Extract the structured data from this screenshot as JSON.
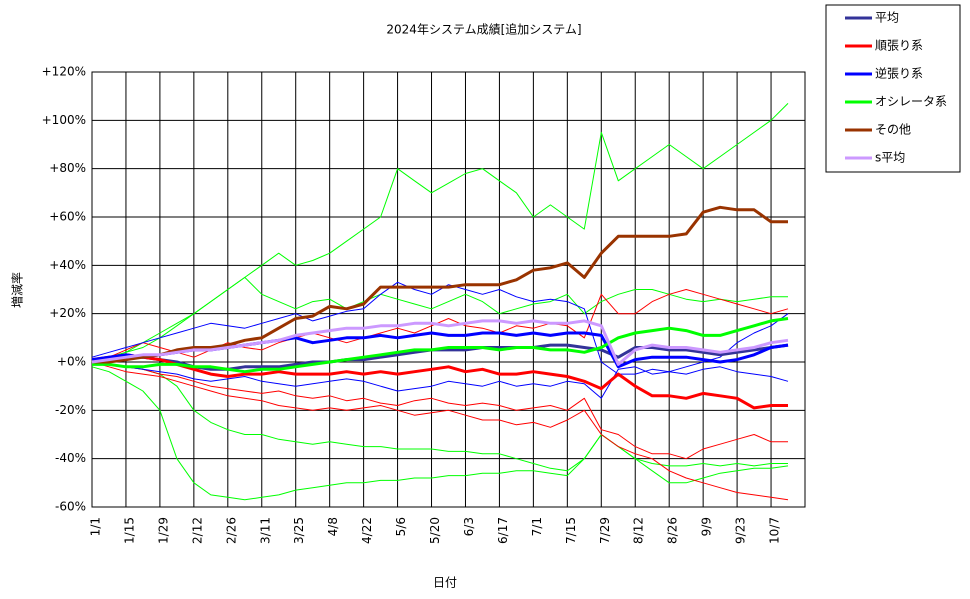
{
  "chart_data": {
    "type": "line",
    "title": "2024年システム成績[追加システム]",
    "x_label": "日付",
    "y_label": "増減率",
    "categories": [
      "1/1",
      null,
      "1/15",
      null,
      "1/29",
      null,
      "2/12",
      null,
      "2/26",
      null,
      "3/11",
      null,
      "3/25",
      null,
      "4/8",
      null,
      "4/22",
      null,
      "5/6",
      null,
      "5/20",
      null,
      "6/3",
      null,
      "6/17",
      null,
      "7/1",
      null,
      "7/15",
      null,
      "7/29",
      null,
      "8/12",
      null,
      "8/26",
      null,
      "9/9",
      null,
      "9/23",
      null,
      "10/7",
      null
    ],
    "ylim": [
      -60,
      120
    ],
    "yticks": [
      {
        "value": -60,
        "label": "-60%"
      },
      {
        "value": -40,
        "label": "-40%"
      },
      {
        "value": -20,
        "label": "-20%"
      },
      {
        "value": 0,
        "label": "+0%"
      },
      {
        "value": 20,
        "label": "+20%"
      },
      {
        "value": 40,
        "label": "+40%"
      },
      {
        "value": 60,
        "label": "+60%"
      },
      {
        "value": 80,
        "label": "+80%"
      },
      {
        "value": 100,
        "label": "+100%"
      },
      {
        "value": 120,
        "label": "+120%"
      }
    ],
    "grid": true,
    "legend": "right",
    "series": [
      {
        "color": "#00ff00",
        "width": 1,
        "values": [
          0,
          2,
          4,
          6,
          10,
          15,
          20,
          25,
          30,
          35,
          40,
          45,
          40,
          42,
          45,
          50,
          55,
          60,
          80,
          75,
          70,
          74,
          78,
          80,
          75,
          70,
          60,
          65,
          60,
          55,
          95,
          75,
          80,
          85,
          90,
          85,
          80,
          85,
          90,
          95,
          100,
          107
        ]
      },
      {
        "color": "#00ff00",
        "width": 1,
        "values": [
          -2,
          -4,
          -8,
          -12,
          -20,
          -40,
          -50,
          -55,
          -56,
          -57,
          -56,
          -55,
          -53,
          -52,
          -51,
          -50,
          -50,
          -49,
          -49,
          -48,
          -48,
          -47,
          -47,
          -46,
          -46,
          -45,
          -45,
          -46,
          -47,
          -40,
          -30,
          -35,
          -40,
          -42,
          -43,
          -43,
          -42,
          -43,
          -42,
          -43,
          -42,
          -42
        ]
      },
      {
        "color": "#00ff00",
        "width": 1,
        "values": [
          0,
          -1,
          -2,
          -3,
          -5,
          -10,
          -20,
          -25,
          -28,
          -30,
          -30,
          -32,
          -33,
          -34,
          -33,
          -34,
          -35,
          -35,
          -36,
          -36,
          -36,
          -37,
          -37,
          -38,
          -38,
          -40,
          -42,
          -44,
          -45,
          -40,
          -30,
          -35,
          -40,
          -45,
          -50,
          -50,
          -48,
          -46,
          -45,
          -44,
          -44,
          -43
        ]
      },
      {
        "color": "#00ff00",
        "width": 1,
        "values": [
          0,
          2,
          4,
          8,
          12,
          16,
          20,
          25,
          30,
          35,
          28,
          25,
          22,
          25,
          26,
          22,
          25,
          28,
          26,
          24,
          22,
          25,
          28,
          25,
          20,
          22,
          24,
          25,
          28,
          20,
          25,
          28,
          30,
          30,
          28,
          26,
          25,
          26,
          25,
          26,
          27,
          27
        ]
      },
      {
        "color": "#ff0000",
        "width": 1,
        "values": [
          0,
          2,
          5,
          8,
          6,
          4,
          2,
          5,
          8,
          6,
          5,
          8,
          10,
          12,
          10,
          8,
          10,
          12,
          14,
          12,
          15,
          18,
          15,
          14,
          12,
          15,
          14,
          16,
          15,
          10,
          28,
          20,
          20,
          25,
          28,
          30,
          28,
          26,
          24,
          22,
          20,
          22
        ]
      },
      {
        "color": "#ff0000",
        "width": 1,
        "values": [
          0,
          -2,
          -4,
          -5,
          -6,
          -8,
          -10,
          -12,
          -14,
          -15,
          -16,
          -18,
          -19,
          -20,
          -19,
          -20,
          -19,
          -18,
          -20,
          -22,
          -21,
          -20,
          -22,
          -24,
          -24,
          -26,
          -25,
          -27,
          -24,
          -20,
          -30,
          -35,
          -38,
          -40,
          -45,
          -48,
          -50,
          -52,
          -54,
          -55,
          -56,
          -57
        ]
      },
      {
        "color": "#ff0000",
        "width": 1,
        "values": [
          0,
          -1,
          -2,
          -3,
          -5,
          -6,
          -8,
          -10,
          -11,
          -12,
          -13,
          -12,
          -14,
          -15,
          -14,
          -16,
          -15,
          -17,
          -18,
          -16,
          -15,
          -17,
          -18,
          -17,
          -18,
          -20,
          -19,
          -18,
          -20,
          -15,
          -28,
          -30,
          -35,
          -38,
          -38,
          -40,
          -36,
          -34,
          -32,
          -30,
          -33,
          -33
        ]
      },
      {
        "color": "#0000ff",
        "width": 1,
        "values": [
          2,
          4,
          6,
          8,
          10,
          12,
          14,
          16,
          15,
          14,
          16,
          18,
          20,
          17,
          19,
          21,
          22,
          28,
          33,
          30,
          28,
          32,
          30,
          28,
          30,
          27,
          25,
          26,
          25,
          22,
          0,
          -5,
          -5,
          -3,
          -4,
          -2,
          0,
          2,
          8,
          12,
          15,
          20
        ]
      },
      {
        "color": "#0000ff",
        "width": 1,
        "values": [
          0,
          -1,
          -2,
          -3,
          -4,
          -5,
          -7,
          -8,
          -7,
          -6,
          -8,
          -9,
          -10,
          -9,
          -8,
          -7,
          -8,
          -10,
          -12,
          -11,
          -10,
          -8,
          -9,
          -10,
          -8,
          -10,
          -9,
          -10,
          -8,
          -9,
          -15,
          -3,
          -2,
          -5,
          -4,
          -5,
          -3,
          -2,
          -4,
          -5,
          -6,
          -8
        ]
      },
      {
        "name": "平均",
        "color": "#333399",
        "width": 3,
        "values": [
          1,
          1,
          2,
          2,
          1,
          0,
          -2,
          -3,
          -3,
          -2,
          -2,
          -2,
          -1,
          0,
          0,
          1,
          1,
          2,
          3,
          4,
          5,
          5,
          5,
          6,
          6,
          6,
          6,
          7,
          7,
          6,
          5,
          2,
          6,
          6,
          5,
          5,
          4,
          3,
          4,
          5,
          6,
          7
        ]
      },
      {
        "name": "順張り系",
        "color": "#ff0000",
        "width": 3,
        "values": [
          1,
          2,
          3,
          2,
          1,
          -1,
          -3,
          -5,
          -6,
          -5,
          -5,
          -4,
          -5,
          -5,
          -5,
          -4,
          -5,
          -4,
          -5,
          -4,
          -3,
          -2,
          -4,
          -3,
          -5,
          -5,
          -4,
          -5,
          -6,
          -8,
          -11,
          -5,
          -10,
          -14,
          -14,
          -15,
          -13,
          -14,
          -15,
          -19,
          -18,
          -18
        ]
      },
      {
        "name": "逆張り系",
        "color": "#0000ff",
        "width": 3,
        "values": [
          1,
          2,
          3,
          2,
          3,
          4,
          5,
          5,
          6,
          7,
          8,
          9,
          10,
          8,
          9,
          10,
          10,
          11,
          10,
          11,
          12,
          11,
          11,
          12,
          12,
          11,
          12,
          11,
          12,
          12,
          11,
          -2,
          1,
          2,
          2,
          2,
          1,
          0,
          1,
          3,
          6,
          7
        ]
      },
      {
        "name": "オシレータ系",
        "color": "#00ff00",
        "width": 3,
        "values": [
          -1,
          -1,
          -2,
          -2,
          -1,
          -1,
          -2,
          -2,
          -3,
          -4,
          -3,
          -3,
          -2,
          -1,
          0,
          1,
          2,
          3,
          4,
          5,
          5,
          6,
          6,
          6,
          5,
          6,
          6,
          5,
          5,
          4,
          6,
          10,
          12,
          13,
          14,
          13,
          11,
          11,
          13,
          15,
          17,
          18
        ]
      },
      {
        "name": "その他",
        "color": "#993300",
        "width": 3,
        "values": [
          0,
          0,
          1,
          2,
          3,
          5,
          6,
          6,
          7,
          9,
          10,
          14,
          18,
          19,
          23,
          22,
          24,
          31,
          31,
          31,
          31,
          31,
          32,
          32,
          32,
          34,
          38,
          39,
          41,
          35,
          45,
          52,
          52,
          52,
          52,
          53,
          62,
          64,
          63,
          63,
          58,
          58
        ]
      },
      {
        "name": "s平均",
        "color": "#cc99ff",
        "width": 3,
        "values": [
          0,
          1,
          2,
          3,
          3,
          4,
          5,
          5,
          6,
          7,
          8,
          9,
          11,
          12,
          13,
          14,
          14,
          15,
          15,
          16,
          16,
          15,
          16,
          17,
          17,
          16,
          17,
          16,
          16,
          17,
          15,
          -1,
          5,
          7,
          6,
          6,
          5,
          4,
          5,
          6,
          8,
          9
        ]
      }
    ]
  }
}
